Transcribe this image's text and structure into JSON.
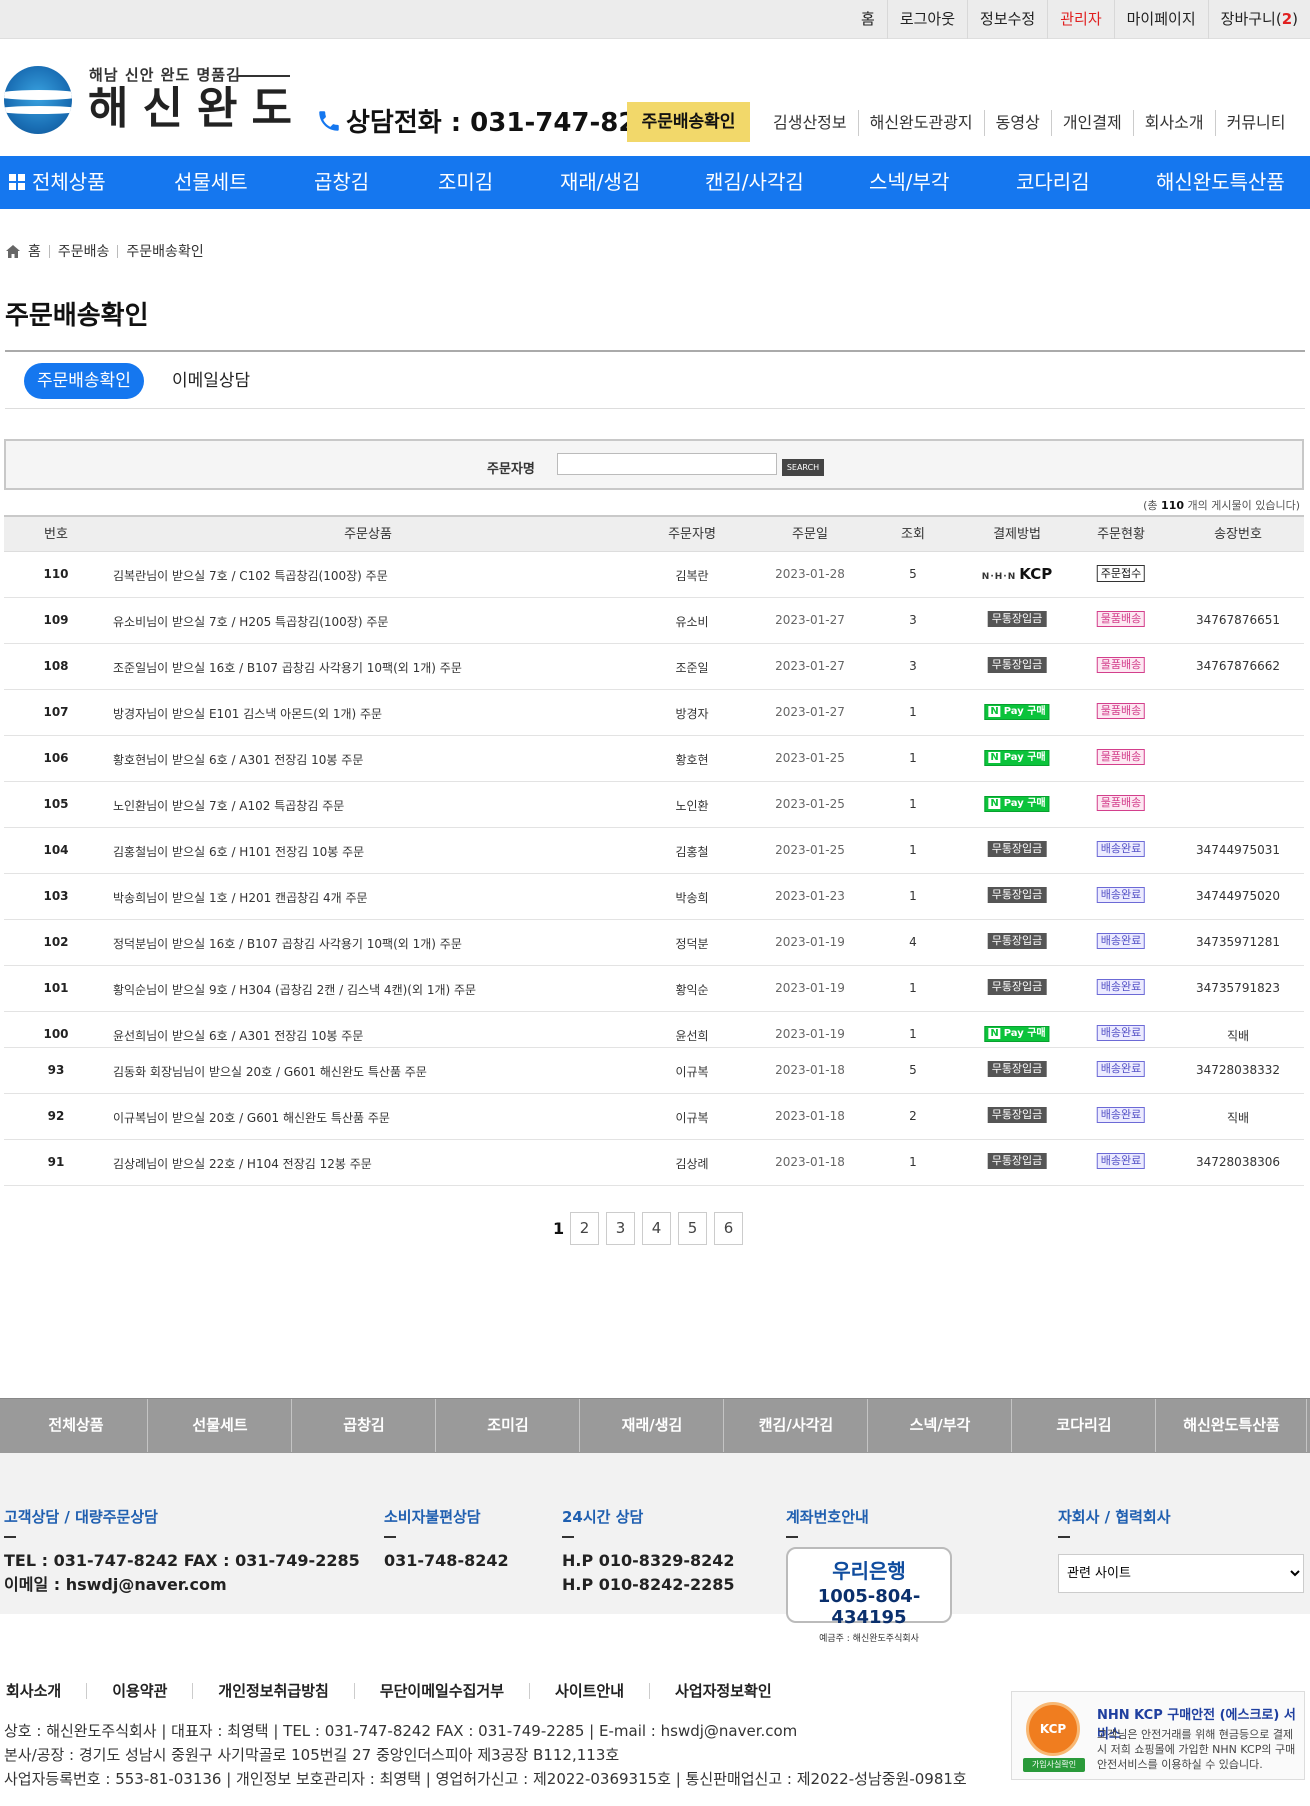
{
  "topbar": {
    "links": [
      "홈",
      "로그아웃",
      "정보수정",
      "관리자",
      "마이페이지"
    ],
    "cart_label": "장바구니",
    "cart_count": "2"
  },
  "header": {
    "logo_sub": "해남 신안 완도 명품김",
    "logo_main": "해신완도",
    "phone_label": "상담전화 : 031-747-8242",
    "delivery_button": "주문배송확인",
    "nav": [
      "김생산정보",
      "해신완도관광지",
      "동영상",
      "개인결제",
      "회사소개",
      "커뮤니티"
    ]
  },
  "main_nav": [
    "전체상품",
    "선물세트",
    "곱창김",
    "조미김",
    "재래/생김",
    "캔김/사각김",
    "스넥/부각",
    "코다리김",
    "해신완도특산품"
  ],
  "breadcrumb": [
    "홈",
    "주문배송",
    "주문배송확인"
  ],
  "page_title": "주문배송확인",
  "tabs": [
    "주문배송확인",
    "이메일상담"
  ],
  "search": {
    "label": "주문자명",
    "value": "",
    "button": "SEARCH"
  },
  "total_note": {
    "prefix": "(총 ",
    "count": "110",
    "suffix": " 개의 게시물이 있습니다)"
  },
  "table": {
    "headers": [
      "번호",
      "주문상품",
      "주문자명",
      "주문일",
      "조회",
      "결제방법",
      "주문현황",
      "송장번호"
    ],
    "rows": [
      {
        "no": "110",
        "product": "김복란님이 받으실 7호 / C102 특곱창김(100장) 주문",
        "name": "김복란",
        "date": "2023-01-28",
        "views": "5",
        "pay": "KCP",
        "status": "주문접수",
        "invoice": ""
      },
      {
        "no": "109",
        "product": "유소비님이 받으실 7호 / H205 특곱창김(100장) 주문",
        "name": "유소비",
        "date": "2023-01-27",
        "views": "3",
        "pay": "무통장입금",
        "status": "물품배송",
        "invoice": "34767876651"
      },
      {
        "no": "108",
        "product": "조준일님이 받으실 16호 / B107 곱창김 사각용기 10팩(외 1개) 주문",
        "name": "조준일",
        "date": "2023-01-27",
        "views": "3",
        "pay": "무통장입금",
        "status": "물품배송",
        "invoice": "34767876662"
      },
      {
        "no": "107",
        "product": "방경자님이 받으실 E101 김스낵 아몬드(외 1개) 주문",
        "name": "방경자",
        "date": "2023-01-27",
        "views": "1",
        "pay": "NPay",
        "status": "물품배송",
        "invoice": ""
      },
      {
        "no": "106",
        "product": "황호현님이 받으실 6호 / A301 전장김 10봉 주문",
        "name": "황호현",
        "date": "2023-01-25",
        "views": "1",
        "pay": "NPay",
        "status": "물품배송",
        "invoice": ""
      },
      {
        "no": "105",
        "product": "노인환님이 받으실 7호 / A102 특곱창김 주문",
        "name": "노인환",
        "date": "2023-01-25",
        "views": "1",
        "pay": "NPay",
        "status": "물품배송",
        "invoice": ""
      },
      {
        "no": "104",
        "product": "김홍철님이 받으실 6호 / H101 전장김 10봉 주문",
        "name": "김홍철",
        "date": "2023-01-25",
        "views": "1",
        "pay": "무통장입금",
        "status": "배송완료",
        "invoice": "34744975031"
      },
      {
        "no": "103",
        "product": "박송희님이 받으실 1호 / H201 캔곱창김 4개 주문",
        "name": "박송희",
        "date": "2023-01-23",
        "views": "1",
        "pay": "무통장입금",
        "status": "배송완료",
        "invoice": "34744975020"
      },
      {
        "no": "102",
        "product": "정덕분님이 받으실 16호 / B107 곱창김 사각용기 10팩(외 1개) 주문",
        "name": "정덕분",
        "date": "2023-01-19",
        "views": "4",
        "pay": "무통장입금",
        "status": "배송완료",
        "invoice": "34735971281"
      },
      {
        "no": "101",
        "product": "황익순님이 받으실 9호 / H304 (곱창김 2캔 / 김스낵 4캔)(외 1개) 주문",
        "name": "황익순",
        "date": "2023-01-19",
        "views": "1",
        "pay": "무통장입금",
        "status": "배송완료",
        "invoice": "34735791823"
      },
      {
        "no": "100",
        "product": "윤선희님이 받으실 6호 / A301 전장김 10봉 주문",
        "name": "윤선희",
        "date": "2023-01-19",
        "views": "1",
        "pay": "NPay",
        "status": "배송완료",
        "invoice": "직배"
      },
      {
        "no": "93",
        "product": "김동화 회장님님이 받으실 20호 / G601 해신완도 특산품 주문",
        "name": "이규복",
        "date": "2023-01-18",
        "views": "5",
        "pay": "무통장입금",
        "status": "배송완료",
        "invoice": "34728038332"
      },
      {
        "no": "92",
        "product": "이규복님이 받으실 20호 / G601 해신완도 특산품 주문",
        "name": "이규복",
        "date": "2023-01-18",
        "views": "2",
        "pay": "무통장입금",
        "status": "배송완료",
        "invoice": "직배"
      },
      {
        "no": "91",
        "product": "김상례님이 받으실 22호 / H104 전장김 12봉 주문",
        "name": "김상례",
        "date": "2023-01-18",
        "views": "1",
        "pay": "무통장입금",
        "status": "배송완료",
        "invoice": "34728038306"
      }
    ]
  },
  "pager": {
    "current": "1",
    "pages": [
      "2",
      "3",
      "4",
      "5",
      "6"
    ]
  },
  "footer_nav": [
    "전체상품",
    "선물세트",
    "곱창김",
    "조미김",
    "재래/생김",
    "캔김/사각김",
    "스넥/부각",
    "코다리김",
    "해신완도특산품"
  ],
  "footer": {
    "cs_title": "고객상담 / 대량주문상담",
    "cs_line1": "TEL : 031-747-8242   FAX : 031-749-2285",
    "cs_line2": "이메일 : hswdj@naver.com",
    "consumer_title": "소비자불편상담",
    "consumer_phone": "031-748-8242",
    "h24_title": "24시간 상담",
    "h24_line1": "H.P  010-8329-8242",
    "h24_line2": "H.P  010-8242-2285",
    "bank_title": "계좌번호안내",
    "bank_name": "우리은행",
    "bank_account": "1005-804-434195",
    "bank_owner": "예금주 : 해신완도주식회사",
    "partner_title": "자회사 / 협력회사",
    "partner_select": "관련 사이트",
    "links": [
      "회사소개",
      "이용약관",
      "개인정보취급방침",
      "무단이메일수집거부",
      "사이트안내",
      "사업자정보확인"
    ],
    "addr1": "상호 : 해신완도주식회사  |  대표자 : 최영택  |  TEL : 031-747-8242 FAX : 031-749-2285  |  E-mail : hswdj@naver.com",
    "addr2": "본사/공장 : 경기도 성남시 중원구 사기막골로 105번길 27 중앙인더스피아 제3공장  B112,113호",
    "addr3": "사업자등록번호 : 553-81-03136  |  개인정보 보호관리자 : 최영택  |  영업허가신고 : 제2022-0369315호  |  통신판매업신고 : 제2022-성남중원-0981호",
    "kcp_seal": "KCP",
    "kcp_tag": "가입사실확인",
    "kcp_title": "NHN KCP 구매안전 (에스크로) 서비스",
    "kcp_desc": "고객님은 안전거래를 위해 현금등으로 결제 시 저희 쇼핑몰에 가입한 NHN KCP의 구매안전서비스를 이용하실 수 있습니다."
  },
  "colors": {
    "brand_blue": "#1577ef",
    "accent_yellow": "#f2d86a",
    "admin_red": "#e02020"
  }
}
